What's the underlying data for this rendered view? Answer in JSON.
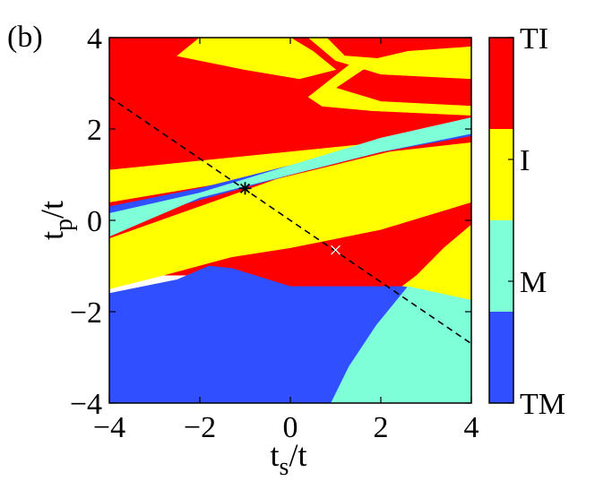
{
  "panel_label": "(b)",
  "chart_data": {
    "type": "heatmap",
    "xlabel": {
      "main": "t",
      "sub": "s",
      "tail": "/t"
    },
    "ylabel": {
      "main": "t",
      "sub": "p",
      "tail": "/t"
    },
    "xlim": [
      -4,
      4
    ],
    "ylim": [
      -4,
      4
    ],
    "xticks": [
      -4,
      -2,
      0,
      2,
      4
    ],
    "yticks": [
      -4,
      -2,
      0,
      2,
      4
    ],
    "xtick_labels": [
      "−4",
      "−2",
      "0",
      "2",
      "4"
    ],
    "ytick_labels": [
      "−4",
      "−2",
      "0",
      "2",
      "4"
    ],
    "colorbar": {
      "position": "right",
      "categories": [
        {
          "label": "TM",
          "color": "#3050ff"
        },
        {
          "label": "M",
          "color": "#7fffd8"
        },
        {
          "label": "I",
          "color": "#ffff00"
        },
        {
          "label": "TI",
          "color": "#ff0000"
        }
      ]
    },
    "regions": [
      {
        "phase": "TI",
        "color": "#ff0000",
        "polygon": [
          [
            -4,
            4
          ],
          [
            4,
            4
          ],
          [
            4,
            -1.7
          ],
          [
            2.4,
            -1.5
          ],
          [
            0,
            -1.5
          ],
          [
            -1.8,
            -1.2
          ],
          [
            -4,
            -1.2
          ]
        ]
      },
      {
        "phase": "I",
        "color": "#ffff00",
        "polygon": [
          [
            -2,
            4
          ],
          [
            0,
            4
          ],
          [
            0.5,
            3.7
          ],
          [
            1,
            3.3
          ],
          [
            0.2,
            3.1
          ],
          [
            -1,
            3.3
          ],
          [
            -2.5,
            3.6
          ]
        ]
      },
      {
        "phase": "I",
        "color": "#ffff00",
        "polygon": [
          [
            0.4,
            4
          ],
          [
            1,
            3.5
          ],
          [
            2,
            3.2
          ],
          [
            4,
            3.1
          ],
          [
            4,
            3.6
          ],
          [
            2.5,
            3.5
          ],
          [
            1.2,
            3.6
          ],
          [
            0.8,
            4
          ]
        ]
      },
      {
        "phase": "I",
        "color": "#ffff00",
        "polygon": [
          [
            1,
            2.9
          ],
          [
            1.6,
            3.3
          ],
          [
            2.7,
            3.5
          ],
          [
            4,
            3.6
          ],
          [
            4,
            3.8
          ],
          [
            2.6,
            3.7
          ],
          [
            1.3,
            3.4
          ],
          [
            0.4,
            2.7
          ],
          [
            0.7,
            2.5
          ],
          [
            1.8,
            2.4
          ],
          [
            4,
            2.3
          ],
          [
            4,
            2.5
          ],
          [
            2,
            2.6
          ]
        ]
      },
      {
        "phase": "I",
        "color": "#ffff00",
        "polygon": [
          [
            -4,
            1.1
          ],
          [
            -2,
            1.3
          ],
          [
            0,
            1.5
          ],
          [
            2,
            1.7
          ],
          [
            4,
            2.1
          ],
          [
            4,
            1.9
          ],
          [
            2,
            1.6
          ],
          [
            -1,
            0.9
          ],
          [
            -4,
            0.4
          ]
        ]
      },
      {
        "phase": "I",
        "color": "#ffff00",
        "polygon": [
          [
            -4,
            -0.4
          ],
          [
            -2,
            0.3
          ],
          [
            -0.3,
            0.9
          ],
          [
            2.2,
            1.5
          ],
          [
            4,
            1.7
          ],
          [
            4,
            0.4
          ],
          [
            2,
            -0.2
          ],
          [
            0,
            -0.6
          ],
          [
            -1.3,
            -0.8
          ],
          [
            -2.8,
            -1.2
          ],
          [
            -4,
            -1.5
          ]
        ]
      },
      {
        "phase": "I",
        "color": "#ffff00",
        "polygon": [
          [
            2.4,
            -1.5
          ],
          [
            2.8,
            -1.2
          ],
          [
            3.4,
            -0.6
          ],
          [
            4,
            -0.1
          ],
          [
            4,
            -1.8
          ],
          [
            3,
            -1.6
          ]
        ]
      },
      {
        "phase": "TM",
        "color": "#3050ff",
        "polygon": [
          [
            -4,
            0.3
          ],
          [
            -2,
            0.7
          ],
          [
            0,
            1.2
          ],
          [
            2,
            1.7
          ],
          [
            4,
            2.05
          ],
          [
            4,
            1.85
          ],
          [
            2,
            1.5
          ],
          [
            0,
            1.0
          ],
          [
            -2,
            0.45
          ],
          [
            -4,
            -0.1
          ]
        ]
      },
      {
        "phase": "M",
        "color": "#7fffd8",
        "polygon": [
          [
            -4,
            0.15
          ],
          [
            -2,
            0.6
          ],
          [
            0,
            1.2
          ],
          [
            2,
            1.8
          ],
          [
            4,
            2.25
          ],
          [
            4,
            1.9
          ],
          [
            2,
            1.5
          ],
          [
            0,
            1.0
          ],
          [
            -2,
            0.5
          ],
          [
            -4,
            -0.35
          ]
        ]
      },
      {
        "phase": "TM",
        "color": "#3050ff",
        "polygon": [
          [
            -4,
            -4
          ],
          [
            4,
            -4
          ],
          [
            4,
            -1.75
          ],
          [
            2.5,
            -1.45
          ],
          [
            0,
            -1.45
          ],
          [
            -1.3,
            -1.05
          ],
          [
            -1.8,
            -1.0
          ],
          [
            -2.5,
            -1.3
          ],
          [
            -4,
            -1.6
          ]
        ]
      },
      {
        "phase": "M",
        "color": "#7fffd8",
        "polygon": [
          [
            0.9,
            -4
          ],
          [
            4,
            -4
          ],
          [
            4,
            -1.75
          ],
          [
            2.6,
            -1.45
          ],
          [
            1.9,
            -2.3
          ],
          [
            1.3,
            -3.2
          ]
        ]
      }
    ],
    "dashed_line": {
      "x": [
        -4,
        4
      ],
      "y": [
        2.7,
        -2.7
      ]
    },
    "markers": [
      {
        "symbol": "asterisk",
        "x": -1.0,
        "y": 0.7,
        "color": "#000000"
      },
      {
        "symbol": "cross",
        "x": 1.0,
        "y": -0.65,
        "color": "#ffffff"
      }
    ]
  }
}
